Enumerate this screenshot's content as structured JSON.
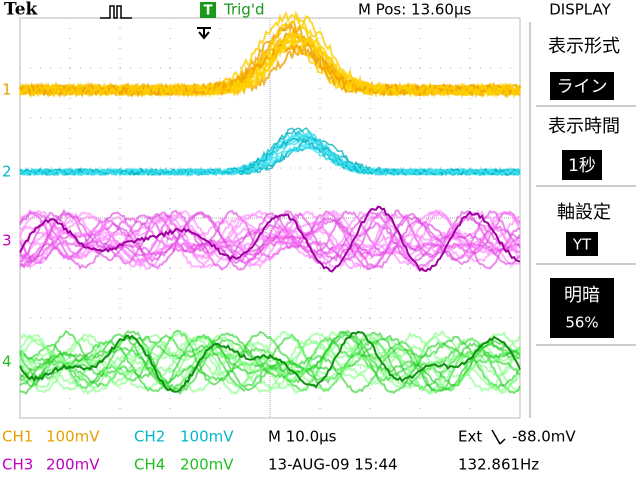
{
  "header": {
    "brand": "Tek",
    "trigger_icon": "T",
    "trigger_status": "Trig'd",
    "m_pos": "M Pos: 13.60µs",
    "menu_title": "DISPLAY"
  },
  "menu": [
    {
      "label": "表示形式",
      "value": "ライン"
    },
    {
      "label": "表示時間",
      "value": "1秒"
    },
    {
      "label": "軸設定",
      "value": "YT"
    },
    {
      "label": "明暗",
      "value": "56%"
    }
  ],
  "channel_markers": [
    "1",
    "2",
    "3",
    "4"
  ],
  "footer": {
    "ch1": {
      "name": "CH1",
      "scale": "100mV"
    },
    "ch2": {
      "name": "CH2",
      "scale": "100mV"
    },
    "ch3": {
      "name": "CH3",
      "scale": "200mV"
    },
    "ch4": {
      "name": "CH4",
      "scale": "200mV"
    },
    "timebase": "M 10.0µs",
    "trigger_source": "Ext",
    "trigger_level": "-88.0mV",
    "date": "13-AUG-09 15:44",
    "frequency": "132.861Hz"
  }
}
